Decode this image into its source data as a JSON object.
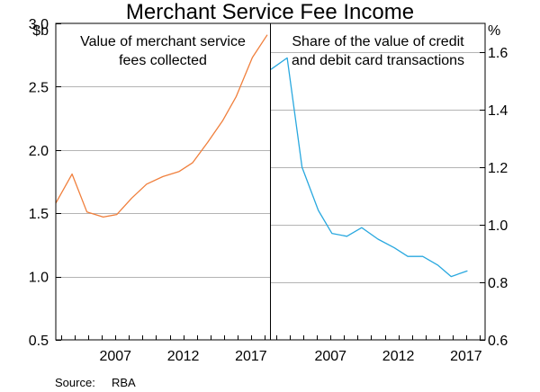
{
  "title": "Merchant Service Fee Income",
  "source_label": "Source:",
  "source_value": "RBA",
  "chart_data": [
    {
      "type": "line",
      "panel_title": [
        "Value of merchant service",
        "fees collected"
      ],
      "unit": "$b",
      "ylim": [
        0.5,
        3.0
      ],
      "yticks": [
        "0.5",
        "1.0",
        "1.5",
        "2.0",
        "2.5",
        "3.0"
      ],
      "xlim": [
        2002.6,
        2018.4
      ],
      "xticks": [
        "2007",
        "2012",
        "2017"
      ],
      "grid": true,
      "series": [
        {
          "color": "#f07f3c",
          "x": [
            2002.6,
            2003.8,
            2004.9,
            2006.1,
            2007.1,
            2008.2,
            2009.3,
            2010.5,
            2011.7,
            2012.7,
            2013.8,
            2014.9,
            2015.9,
            2017.1,
            2018.2
          ],
          "values": [
            1.58,
            1.81,
            1.51,
            1.47,
            1.49,
            1.62,
            1.73,
            1.79,
            1.83,
            1.9,
            2.06,
            2.23,
            2.42,
            2.73,
            2.91
          ]
        }
      ]
    },
    {
      "type": "line",
      "panel_title": [
        "Share of the value of credit",
        "and debit card transactions"
      ],
      "unit": "%",
      "ylim": [
        0.6,
        1.7
      ],
      "yticks": [
        "0.6",
        "0.8",
        "1.0",
        "1.2",
        "1.4",
        "1.6"
      ],
      "xlim": [
        2002.6,
        2018.4
      ],
      "xticks": [
        "2007",
        "2012",
        "2017"
      ],
      "grid": true,
      "series": [
        {
          "color": "#29a8df",
          "x": [
            2002.6,
            2003.8,
            2004.9,
            2006.1,
            2007.1,
            2008.2,
            2009.3,
            2010.5,
            2011.7,
            2012.7,
            2013.8,
            2014.9,
            2015.9,
            2017.1
          ],
          "values": [
            1.54,
            1.58,
            1.2,
            1.05,
            0.97,
            0.96,
            0.99,
            0.95,
            0.92,
            0.89,
            0.89,
            0.86,
            0.82,
            0.84
          ]
        }
      ]
    }
  ]
}
